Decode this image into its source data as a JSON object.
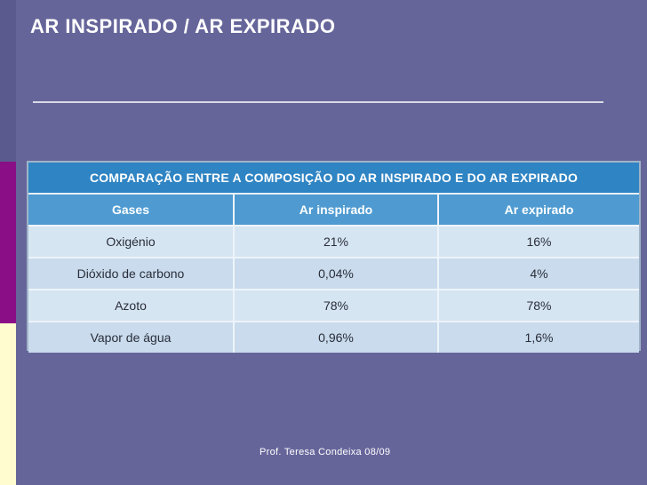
{
  "slide": {
    "title": "AR INSPIRADO / AR EXPIRADO",
    "footer": "Prof. Teresa Condeixa 08/09"
  },
  "table": {
    "caption": "COMPARAÇÃO ENTRE A COMPOSIÇÃO DO AR INSPIRADO E DO AR EXPIRADO",
    "headers": [
      "Gases",
      "Ar inspirado",
      "Ar expirado"
    ],
    "rows": [
      [
        "Oxigénio",
        "21%",
        "16%"
      ],
      [
        "Dióxido de carbono",
        "0,04%",
        "4%"
      ],
      [
        "Azoto",
        "78%",
        "78%"
      ],
      [
        "Vapor de água",
        "0,96%",
        "1,6%"
      ]
    ]
  },
  "colors": {
    "background": "#66659a",
    "accent_purple": "#8a0f86",
    "accent_cream": "#fffdd0",
    "table_header": "#2f84c3"
  }
}
